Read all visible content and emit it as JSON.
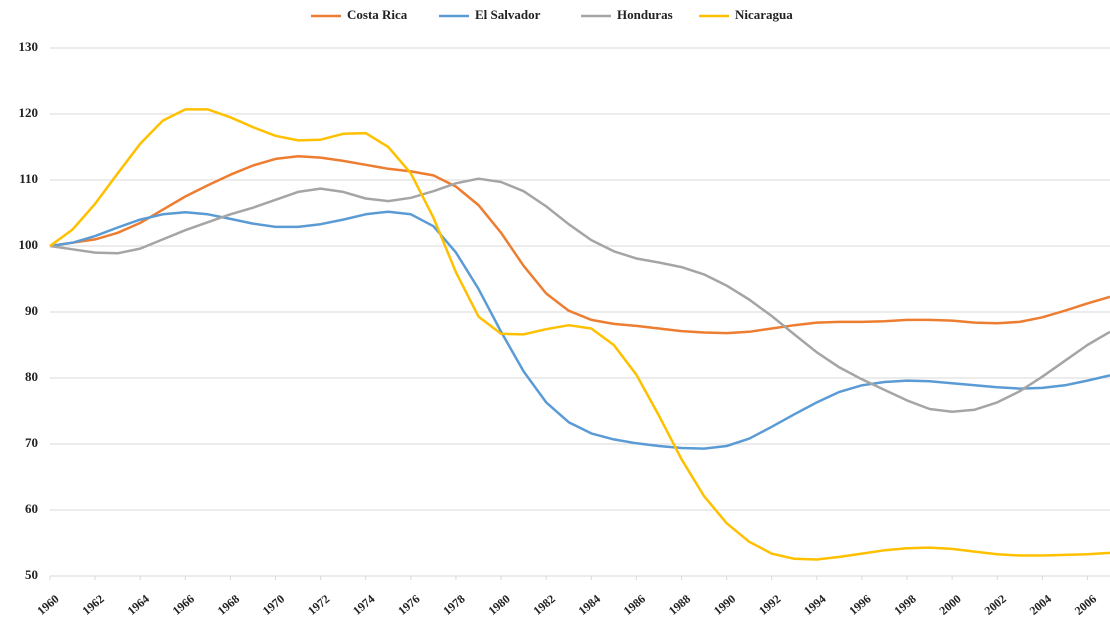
{
  "chart_data": {
    "type": "line",
    "x": [
      1960,
      1961,
      1962,
      1963,
      1964,
      1965,
      1966,
      1967,
      1968,
      1969,
      1970,
      1971,
      1972,
      1973,
      1974,
      1975,
      1976,
      1977,
      1978,
      1979,
      1980,
      1981,
      1982,
      1983,
      1984,
      1985,
      1986,
      1987,
      1988,
      1989,
      1990,
      1991,
      1992,
      1993,
      1994,
      1995,
      1996,
      1997,
      1998,
      1999,
      2000,
      2001,
      2002,
      2003,
      2004,
      2005,
      2006,
      2007
    ],
    "series": [
      {
        "name": "Costa Rica",
        "color": "#ed7d31",
        "values": [
          100,
          100.5,
          101,
          102,
          103.5,
          105.5,
          107.5,
          109.2,
          110.8,
          112.2,
          113.2,
          113.6,
          113.4,
          112.9,
          112.3,
          111.7,
          111.3,
          110.7,
          109,
          106.2,
          102,
          97,
          92.8,
          90.2,
          88.8,
          88.2,
          87.9,
          87.5,
          87.1,
          86.9,
          86.8,
          87,
          87.5,
          88,
          88.4,
          88.5,
          88.5,
          88.6,
          88.8,
          88.8,
          88.7,
          88.4,
          88.3,
          88.5,
          89.2,
          90.2,
          91.3,
          92.3
        ]
      },
      {
        "name": "El Salvador",
        "color": "#5b9bd5",
        "values": [
          100,
          100.5,
          101.5,
          102.8,
          104,
          104.8,
          105.1,
          104.8,
          104.1,
          103.4,
          102.9,
          102.9,
          103.3,
          104,
          104.8,
          105.2,
          104.8,
          103,
          99,
          93.5,
          87,
          81,
          76.3,
          73.3,
          71.6,
          70.7,
          70.1,
          69.7,
          69.4,
          69.3,
          69.7,
          70.8,
          72.6,
          74.5,
          76.3,
          77.9,
          78.9,
          79.4,
          79.6,
          79.5,
          79.2,
          78.9,
          78.6,
          78.4,
          78.5,
          78.9,
          79.6,
          80.4
        ]
      },
      {
        "name": "Honduras",
        "color": "#a5a5a5",
        "values": [
          100,
          99.5,
          99,
          98.9,
          99.6,
          101,
          102.4,
          103.6,
          104.8,
          105.8,
          107,
          108.2,
          108.7,
          108.2,
          107.2,
          106.8,
          107.3,
          108.3,
          109.5,
          110.2,
          109.7,
          108.3,
          106,
          103.3,
          100.9,
          99.2,
          98.1,
          97.5,
          96.8,
          95.7,
          94,
          91.9,
          89.4,
          86.6,
          83.9,
          81.6,
          79.8,
          78.2,
          76.6,
          75.3,
          74.9,
          75.2,
          76.3,
          78,
          80.2,
          82.6,
          85,
          87
        ]
      },
      {
        "name": "Nicaragua",
        "color": "#ffc000",
        "values": [
          100,
          102.5,
          106.4,
          111,
          115.5,
          119,
          120.7,
          120.7,
          119.5,
          118,
          116.7,
          116,
          116.1,
          117,
          117.1,
          115,
          111,
          104.3,
          96,
          89.3,
          86.7,
          86.6,
          87.4,
          88,
          87.5,
          85,
          80.5,
          74.3,
          67.7,
          62.1,
          58,
          55.2,
          53.4,
          52.6,
          52.5,
          52.9,
          53.4,
          53.9,
          54.2,
          54.3,
          54.1,
          53.7,
          53.3,
          53.1,
          53.1,
          53.2,
          53.3,
          53.5
        ]
      }
    ],
    "xlim": [
      1960,
      2007
    ],
    "xticks": [
      1960,
      1962,
      1964,
      1966,
      1968,
      1970,
      1972,
      1974,
      1976,
      1978,
      1980,
      1982,
      1984,
      1986,
      1988,
      1990,
      1992,
      1994,
      1996,
      1998,
      2000,
      2002,
      2004,
      2006
    ],
    "ylim": [
      50,
      130
    ],
    "yticks": [
      50,
      60,
      70,
      80,
      90,
      100,
      110,
      120,
      130
    ],
    "grid": true,
    "legend": "top"
  }
}
